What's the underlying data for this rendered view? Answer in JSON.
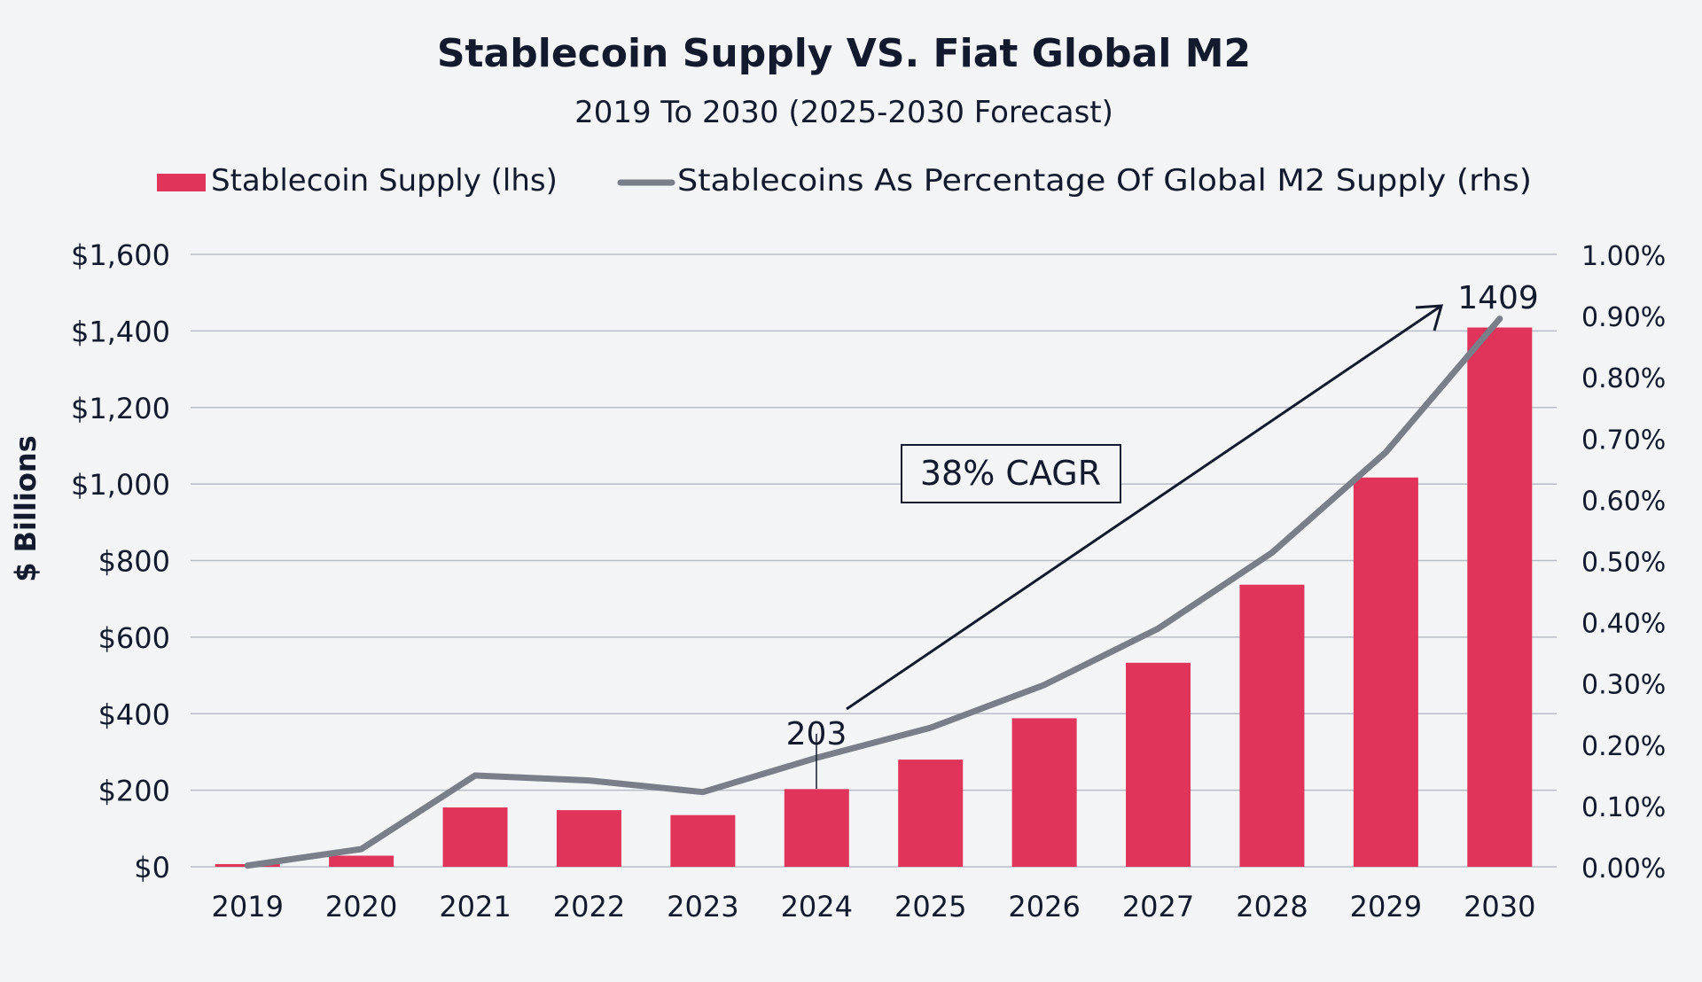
{
  "chart_data": {
    "type": "bar+line",
    "title": "Stablecoin Supply VS. Fiat Global M2",
    "subtitle": "2019 To 2030 (2025-2030 Forecast)",
    "ylabel": "$ Billions",
    "categories": [
      "2019",
      "2020",
      "2021",
      "2022",
      "2023",
      "2024",
      "2025",
      "2026",
      "2027",
      "2028",
      "2029",
      "2030"
    ],
    "series": [
      {
        "name": "Stablecoin Supply (lhs)",
        "type": "bar",
        "axis": "left",
        "color": "#e1345a",
        "values": [
          7,
          29,
          155,
          148,
          135,
          203,
          280,
          388,
          533,
          737,
          1017,
          1409
        ]
      },
      {
        "name": "Stablecoins As Percentage Of Global M2 Supply (rhs)",
        "type": "line",
        "axis": "right",
        "color": "#797e89",
        "values": [
          0.0002,
          0.0029,
          0.0149,
          0.0141,
          0.0122,
          0.0178,
          0.0227,
          0.0297,
          0.0389,
          0.0513,
          0.0677,
          0.0895
        ]
      }
    ],
    "left_axis": {
      "ylim": [
        0,
        1600
      ],
      "ticks": [
        0,
        200,
        400,
        600,
        800,
        1000,
        1200,
        1400,
        1600
      ],
      "tick_labels": [
        "$0",
        "$200",
        "$400",
        "$600",
        "$800",
        "$1,000",
        "$1,200",
        "$1,400",
        "$1,600"
      ]
    },
    "right_axis": {
      "ylim": [
        0,
        0.1
      ],
      "ticks": [
        0,
        0.01,
        0.02,
        0.03,
        0.04,
        0.05,
        0.06,
        0.07,
        0.08,
        0.09,
        0.1
      ],
      "tick_labels": [
        "0.00%",
        "0.10%",
        "0.20%",
        "0.30%",
        "0.40%",
        "0.50%",
        "0.60%",
        "0.70%",
        "0.80%",
        "0.90%",
        "1.00%"
      ]
    },
    "annotations": [
      {
        "text": "203",
        "category": "2024"
      },
      {
        "text": "1409",
        "category": "2030"
      },
      {
        "text": "38% CAGR",
        "kind": "boxed-label",
        "arrow": "2024 to 2030"
      }
    ],
    "grid": true,
    "legend": "top"
  }
}
